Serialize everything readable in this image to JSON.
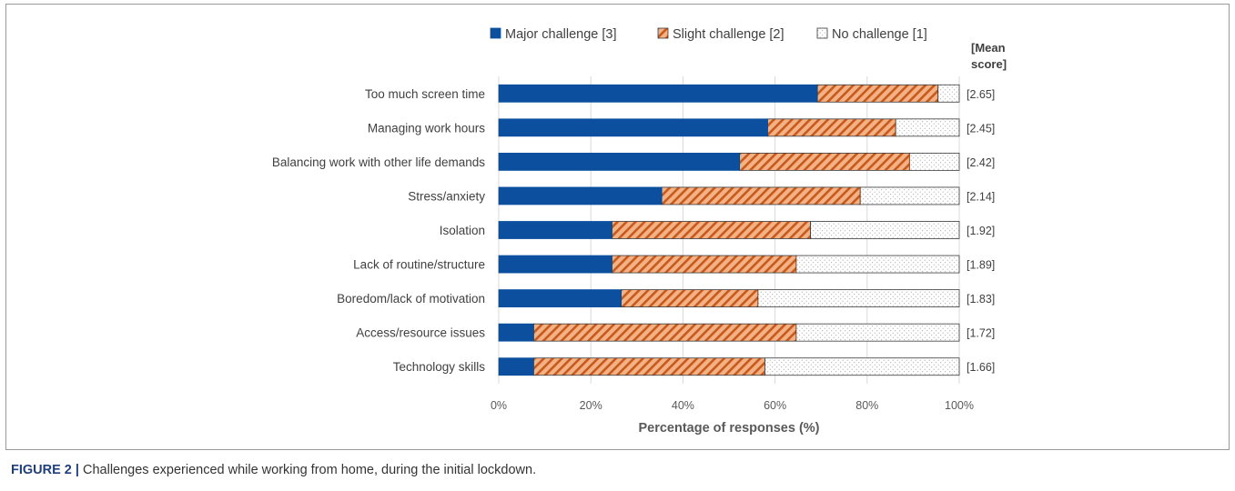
{
  "caption": {
    "lead": "FIGURE 2 |",
    "text": " Challenges experienced while working from home, during the initial lockdown."
  },
  "chart_data": {
    "type": "bar",
    "orientation": "horizontal",
    "stacked": "100%",
    "categories": [
      "Too much screen time",
      "Managing work hours",
      "Balancing work with other life demands",
      "Stress/anxiety",
      "Isolation",
      "Lack of routine/structure",
      "Boredom/lack of motivation",
      "Access/resource issues",
      "Technology skills"
    ],
    "series": [
      {
        "name": "Major challenge [3]",
        "color": "#0b4f9e",
        "pattern": "solid",
        "values": [
          69.2,
          58.4,
          52.3,
          35.4,
          24.6,
          24.6,
          26.6,
          7.6,
          7.6
        ]
      },
      {
        "name": "Slight challenge [2]",
        "color": "#f4b183",
        "pattern": "diagonal-stripes",
        "values": [
          26.2,
          27.8,
          36.9,
          43.1,
          43.1,
          40.0,
          29.7,
          57.0,
          50.2
        ]
      },
      {
        "name": "No challenge [1]",
        "color": "#ffffff",
        "pattern": "dots",
        "values": [
          4.6,
          13.8,
          10.8,
          21.5,
          32.3,
          35.4,
          43.7,
          35.4,
          42.2
        ]
      }
    ],
    "mean_scores": [
      "[2.65]",
      "[2.45]",
      "[2.42]",
      "[2.14]",
      "[1.92]",
      "[1.89]",
      "[1.83]",
      "[1.72]",
      "[1.66]"
    ],
    "mean_header": [
      "[Mean",
      "score]"
    ],
    "xticks": [
      "0%",
      "20%",
      "40%",
      "60%",
      "80%",
      "100%"
    ],
    "xlim": [
      0,
      100
    ],
    "xlabel": "Percentage of responses (%)",
    "ylabel": "",
    "title": "",
    "grid": "vertical",
    "legend": "top"
  }
}
